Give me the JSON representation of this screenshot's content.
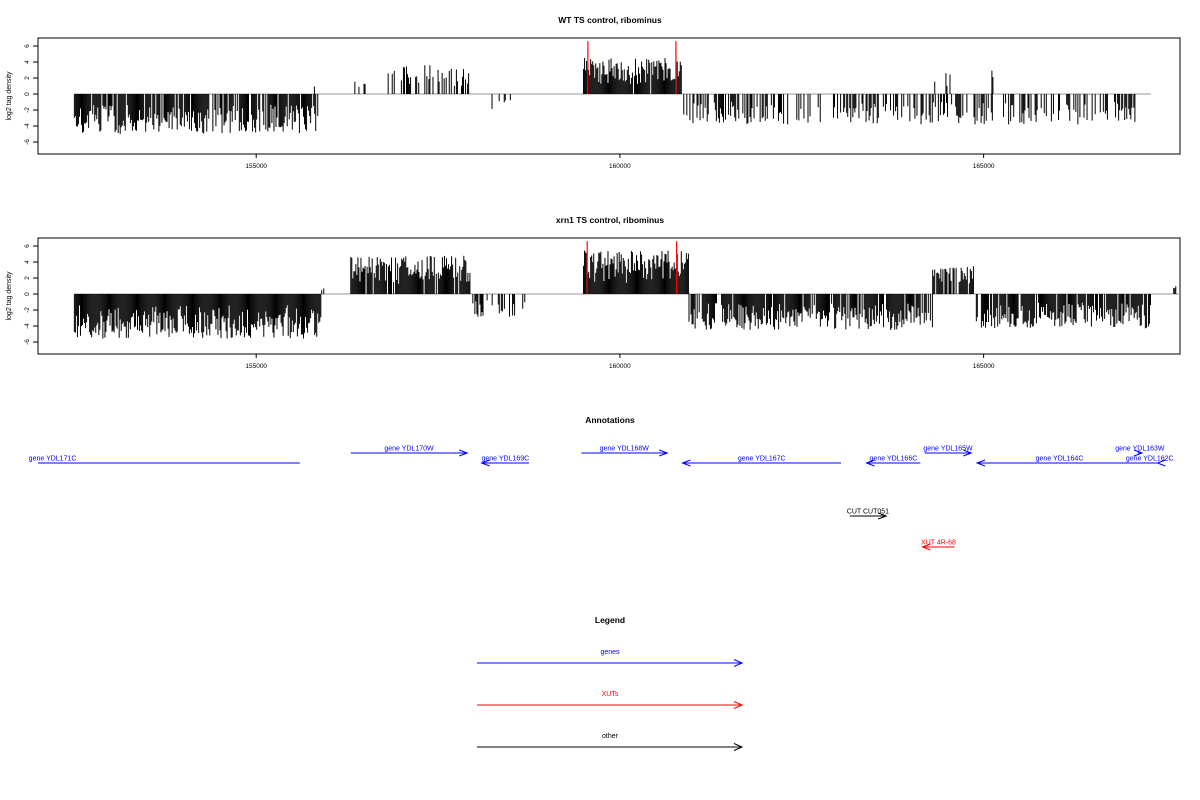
{
  "chart_data": [
    {
      "type": "bar",
      "title": "WT TS control, ribominus",
      "ylabel": "log2 tag density",
      "xlabel": "",
      "xlim": [
        152000,
        167700
      ],
      "ylim": [
        -7.5,
        7
      ],
      "yticks": [
        -6,
        -4,
        -2,
        0,
        2,
        4,
        6
      ],
      "ytick_labels": [
        "-6",
        "-4",
        "-2",
        "0",
        "2",
        "4",
        "6"
      ],
      "xticks": [
        155000,
        160000,
        165000
      ],
      "xtick_labels": [
        "155000",
        "160000",
        "165000"
      ],
      "grid": false,
      "baseline": [
        152500,
        167300
      ],
      "segments": [
        {
          "from": 152500,
          "to": 155850,
          "sign": -1,
          "max": 5.0,
          "density": 0.85
        },
        {
          "from": 155800,
          "to": 155850,
          "sign": 1,
          "max": 1.0,
          "density": 0.5
        },
        {
          "from": 156300,
          "to": 156500,
          "sign": 1,
          "max": 1.6,
          "density": 0.25
        },
        {
          "from": 156800,
          "to": 158000,
          "sign": 1,
          "max": 3.6,
          "density": 0.4
        },
        {
          "from": 158200,
          "to": 158500,
          "sign": -1,
          "max": 2.0,
          "density": 0.12
        },
        {
          "from": 159500,
          "to": 160850,
          "sign": 1,
          "max": 4.5,
          "density": 0.95
        },
        {
          "from": 160850,
          "to": 167100,
          "sign": -1,
          "max": 3.8,
          "density": 0.5
        },
        {
          "from": 164300,
          "to": 164700,
          "sign": 1,
          "max": 3.0,
          "density": 0.15
        },
        {
          "from": 165100,
          "to": 165150,
          "sign": 1,
          "max": 3.4,
          "density": 0.5
        }
      ],
      "highlights": [
        {
          "x": 159560,
          "y": 6.6,
          "color": "#ff0000"
        },
        {
          "x": 160770,
          "y": 6.6,
          "color": "#ff0000"
        }
      ]
    },
    {
      "type": "bar",
      "title": "xrn1 TS control, ribominus",
      "ylabel": "log2 tag density",
      "xlabel": "",
      "xlim": [
        152000,
        167700
      ],
      "ylim": [
        -7.5,
        7
      ],
      "yticks": [
        -6,
        -4,
        -2,
        0,
        2,
        4,
        6
      ],
      "ytick_labels": [
        "-6",
        "-4",
        "-2",
        "0",
        "2",
        "4",
        "6"
      ],
      "xticks": [
        155000,
        160000,
        165000
      ],
      "xtick_labels": [
        "155000",
        "160000",
        "165000"
      ],
      "grid": false,
      "baseline": [
        152500,
        167700
      ],
      "segments": [
        {
          "from": 152500,
          "to": 155900,
          "sign": -1,
          "max": 5.6,
          "density": 1.0
        },
        {
          "from": 155900,
          "to": 155950,
          "sign": 1,
          "max": 1.0,
          "density": 0.5
        },
        {
          "from": 156300,
          "to": 157950,
          "sign": 1,
          "max": 4.8,
          "density": 0.9
        },
        {
          "from": 157950,
          "to": 158700,
          "sign": -1,
          "max": 3.0,
          "density": 0.45
        },
        {
          "from": 159500,
          "to": 160950,
          "sign": 1,
          "max": 5.5,
          "density": 1.0
        },
        {
          "from": 160950,
          "to": 164300,
          "sign": -1,
          "max": 4.5,
          "density": 0.85
        },
        {
          "from": 164300,
          "to": 164900,
          "sign": 1,
          "max": 3.5,
          "density": 0.7
        },
        {
          "from": 164900,
          "to": 167300,
          "sign": -1,
          "max": 4.3,
          "density": 0.85
        },
        {
          "from": 167600,
          "to": 167650,
          "sign": 1,
          "max": 1.0,
          "density": 0.5
        }
      ],
      "highlights": [
        {
          "x": 159550,
          "y": 6.6,
          "color": "#ff0000"
        },
        {
          "x": 160780,
          "y": 6.6,
          "color": "#ff0000"
        }
      ]
    }
  ],
  "annotations": {
    "title": "Annotations",
    "xlim": [
      152000,
      167700
    ],
    "features": [
      {
        "label": "gene YDL171C",
        "start": 151500,
        "end": 155600,
        "strand": "-",
        "type": "gene",
        "row": 1,
        "label_x": 152200,
        "arrow_visible": false
      },
      {
        "label": "gene YDL170W",
        "start": 156300,
        "end": 157900,
        "strand": "+",
        "type": "gene",
        "row": 0
      },
      {
        "label": "gene YDL169C",
        "start": 158100,
        "end": 158750,
        "strand": "-",
        "type": "gene",
        "row": 1
      },
      {
        "label": "gene YDL168W",
        "start": 159470,
        "end": 160650,
        "strand": "+",
        "type": "gene",
        "row": 0
      },
      {
        "label": "gene YDL167C",
        "start": 160860,
        "end": 163040,
        "strand": "-",
        "type": "gene",
        "row": 1
      },
      {
        "label": "gene YDL166C",
        "start": 163390,
        "end": 164130,
        "strand": "-",
        "type": "gene",
        "row": 1
      },
      {
        "label": "gene YDL165W",
        "start": 164190,
        "end": 164830,
        "strand": "+",
        "type": "gene",
        "row": 0
      },
      {
        "label": "gene YDL164C",
        "start": 164910,
        "end": 167200,
        "strand": "-",
        "type": "gene",
        "row": 1
      },
      {
        "label": "gene YDL163W",
        "start": 167120,
        "end": 167480,
        "strand": "+",
        "type": "gene",
        "row": 0
      },
      {
        "label": "gene YDL162C",
        "start": 167390,
        "end": 167720,
        "strand": "-",
        "type": "gene",
        "row": 1
      },
      {
        "label": "CUT CUT051",
        "start": 163160,
        "end": 163660,
        "strand": "+",
        "type": "other",
        "row": 2
      },
      {
        "label": "XUT 4R-68",
        "start": 164160,
        "end": 164600,
        "strand": "-",
        "type": "XUT",
        "row": 3
      }
    ]
  },
  "legend": {
    "title": "Legend",
    "items": [
      {
        "label": "genes",
        "color": "#0000ff"
      },
      {
        "label": "XUTs",
        "color": "#ff0000"
      },
      {
        "label": "other",
        "color": "#000000"
      }
    ]
  },
  "colors": {
    "gene": "#0000ff",
    "XUT": "#ff0000",
    "other": "#000000",
    "bars": "#000000",
    "baseline": "#999999"
  }
}
